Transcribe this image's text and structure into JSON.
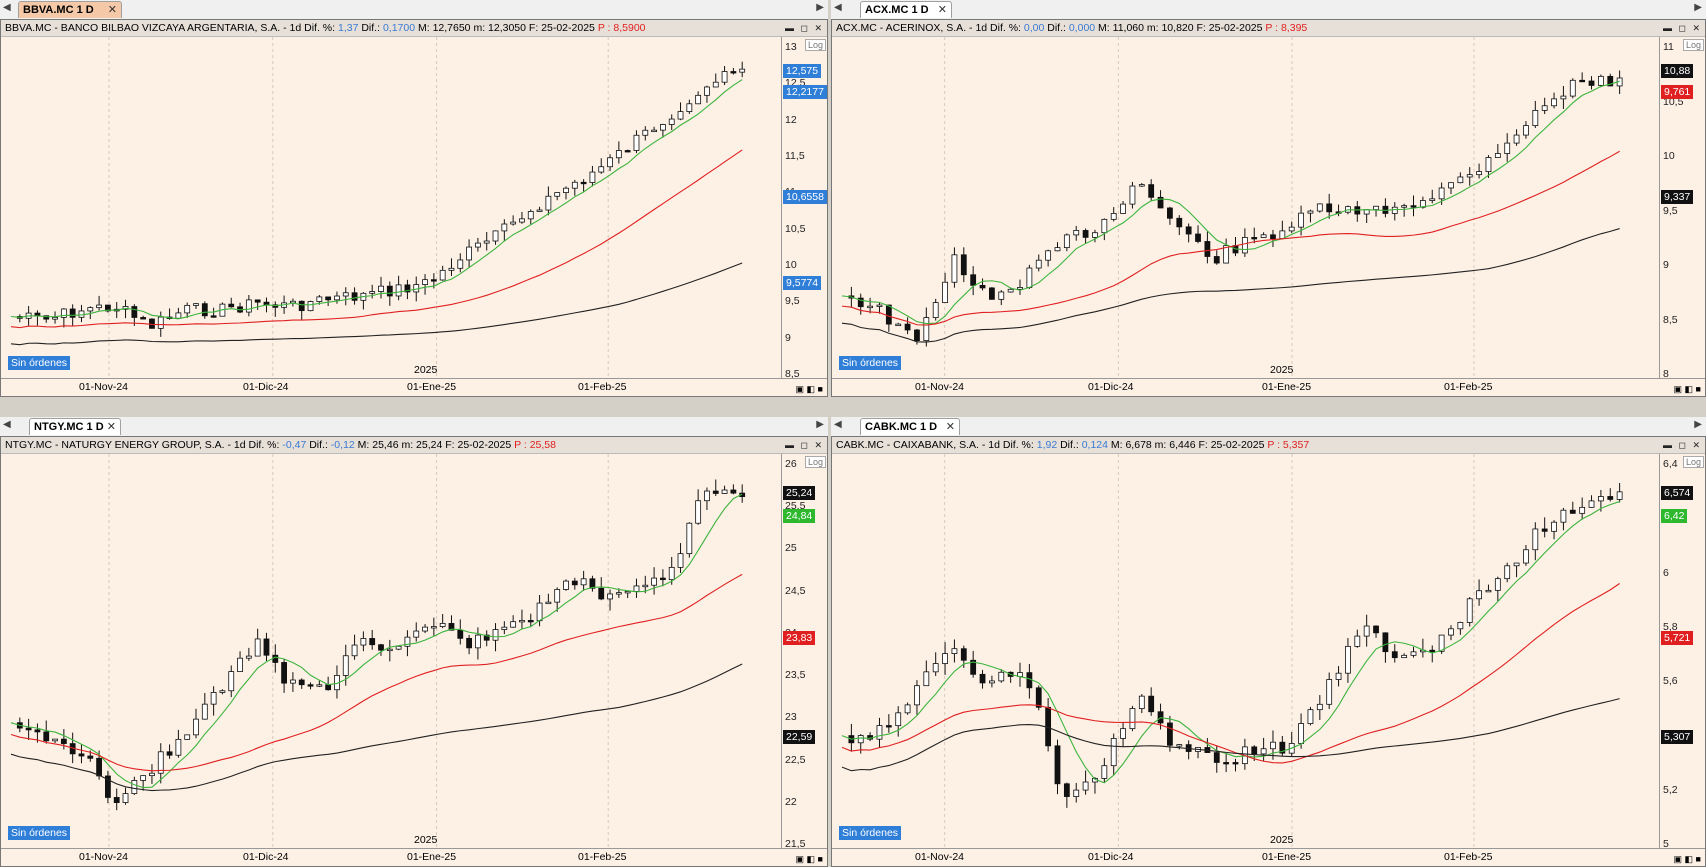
{
  "panes": [
    {
      "tab": "BBVA.MC 1 D",
      "header": {
        "title": "BBVA.MC - BANCO BILBAO VIZCAYA ARGENTARIA, S.A. -  1d",
        "dif_pct_label": "Dif. %:",
        "dif_pct": "1,37",
        "dif_label": "Dif.:",
        "dif": "0,1700",
        "max": "M: 12,7650",
        "min": "m: 12,3050",
        "date": "F: 25-02-2025",
        "price": "P : 8,5900"
      },
      "log_label": "Log",
      "orders_label": "Sin órdenes",
      "year_label": "2025",
      "y_ticks": [
        "13",
        "12,5",
        "12",
        "11,5",
        "11",
        "10,5",
        "10",
        "9,5",
        "9",
        "8,5"
      ],
      "x_ticks": [
        "01-Nov-24",
        "01-Dic-24",
        "01-Ene-25",
        "01-Feb-25"
      ],
      "price_labels": [
        {
          "text": "12,575",
          "color": "#2f7ed8"
        },
        {
          "text": "12,2177",
          "color": "#2f7ed8"
        },
        {
          "text": "10,6558",
          "color": "#2f7ed8"
        },
        {
          "text": "9,5774",
          "color": "#2f7ed8"
        }
      ]
    },
    {
      "tab": "ACX.MC 1 D",
      "header": {
        "title": "ACX.MC - ACERINOX, S.A. -  1d",
        "dif_pct_label": "Dif. %:",
        "dif_pct": "0,00",
        "dif_label": "Dif.:",
        "dif": "0,000",
        "max": "M: 11,060",
        "min": "m: 10,820",
        "date": "F: 25-02-2025",
        "price": "P : 8,395"
      },
      "log_label": "Log",
      "orders_label": "Sin órdenes",
      "year_label": "2025",
      "y_ticks": [
        "11",
        "10,5",
        "10",
        "9,5",
        "9",
        "8,5",
        "8"
      ],
      "x_ticks": [
        "01-Nov-24",
        "01-Dic-24",
        "01-Ene-25",
        "01-Feb-25"
      ],
      "price_labels": [
        {
          "text": "10,88",
          "color": "#111111"
        },
        {
          "text": "9,761",
          "color": "#e02020"
        },
        {
          "text": "9,337",
          "color": "#111111"
        }
      ]
    },
    {
      "tab": "NTGY.MC 1 D",
      "header": {
        "title": "NTGY.MC - NATURGY ENERGY GROUP, S.A. -  1d",
        "dif_pct_label": "Dif. %:",
        "dif_pct": "-0,47",
        "dif_label": "Dif.:",
        "dif": "-0,12",
        "max": "M: 25,46",
        "min": "m: 25,24",
        "date": "F: 25-02-2025",
        "price": "P : 25,58"
      },
      "log_label": "Log",
      "orders_label": "Sin órdenes",
      "year_label": "2025",
      "y_ticks": [
        "26",
        "25,5",
        "25",
        "24,5",
        "24",
        "23,5",
        "23",
        "22,5",
        "22",
        "21,5"
      ],
      "x_ticks": [
        "01-Nov-24",
        "01-Dic-24",
        "01-Ene-25",
        "01-Feb-25"
      ],
      "price_labels": [
        {
          "text": "25,24",
          "color": "#111111"
        },
        {
          "text": "24,84",
          "color": "#2db82d"
        },
        {
          "text": "23,83",
          "color": "#e02020"
        },
        {
          "text": "22,59",
          "color": "#111111"
        }
      ]
    },
    {
      "tab": "CABK.MC 1 D",
      "header": {
        "title": "CABK.MC - CAIXABANK, S.A. -  1d",
        "dif_pct_label": "Dif. %:",
        "dif_pct": "1,92",
        "dif_label": "Dif.:",
        "dif": "0,124",
        "max": "M: 6,678",
        "min": "m: 6,446",
        "date": "F: 25-02-2025",
        "price": "P : 5,357"
      },
      "log_label": "Log",
      "orders_label": "Sin órdenes",
      "year_label": "2025",
      "y_ticks": [
        "6,4",
        "6,2",
        "6",
        "5,8",
        "5,6",
        "5,4",
        "5,2",
        "5"
      ],
      "x_ticks": [
        "01-Nov-24",
        "01-Dic-24",
        "01-Ene-25",
        "01-Feb-25"
      ],
      "price_labels": [
        {
          "text": "6,574",
          "color": "#111111"
        },
        {
          "text": "6,42",
          "color": "#2db82d"
        },
        {
          "text": "5,721",
          "color": "#e02020"
        },
        {
          "text": "5,307",
          "color": "#111111"
        }
      ]
    }
  ],
  "colors": {
    "background": "#fdf1e6",
    "sma_fast": "#3cb43c",
    "sma_mid": "#e02020",
    "sma_slow": "#222222",
    "candle_up": "#ffffff",
    "candle_down": "#111111"
  }
}
